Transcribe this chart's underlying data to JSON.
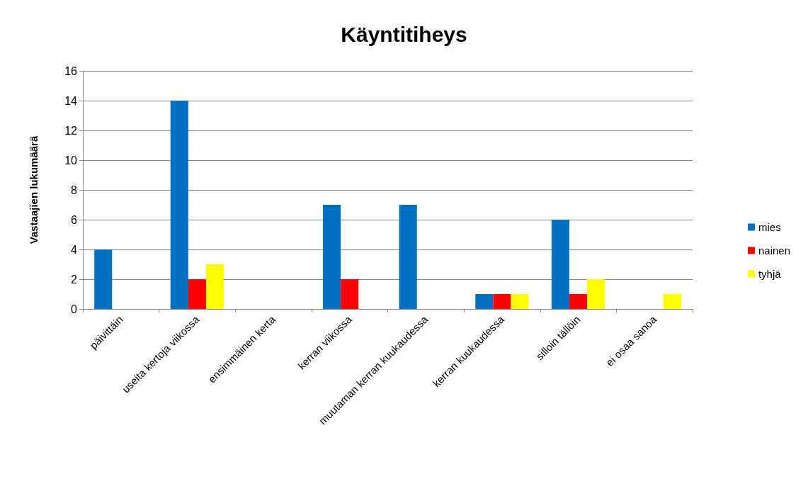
{
  "chart_data": {
    "type": "bar",
    "title": "Käyntitiheys",
    "ylabel": "Vastaajien lukumäärä",
    "categories": [
      "päivittäin",
      "useita kertoja viikossa",
      "ensimmäinen kerta",
      "kerran viikossa",
      "muutaman kerran kuukaudessa",
      "kerran kuukaudessa",
      "silloin tällöin",
      "ei osaa sanoa"
    ],
    "series": [
      {
        "name": "mies",
        "color": "#0070c0",
        "values": [
          4,
          14,
          0,
          7,
          7,
          1,
          6,
          0
        ]
      },
      {
        "name": "nainen",
        "color": "#ff0000",
        "values": [
          0,
          2,
          0,
          2,
          0,
          1,
          1,
          0
        ]
      },
      {
        "name": "tyhjä",
        "color": "#ffff00",
        "values": [
          0,
          3,
          0,
          0,
          0,
          1,
          2,
          1
        ]
      }
    ],
    "ylim": [
      0,
      16
    ],
    "yticks": [
      0,
      2,
      4,
      6,
      8,
      10,
      12,
      14,
      16
    ],
    "grid": "y",
    "legend": "right"
  }
}
